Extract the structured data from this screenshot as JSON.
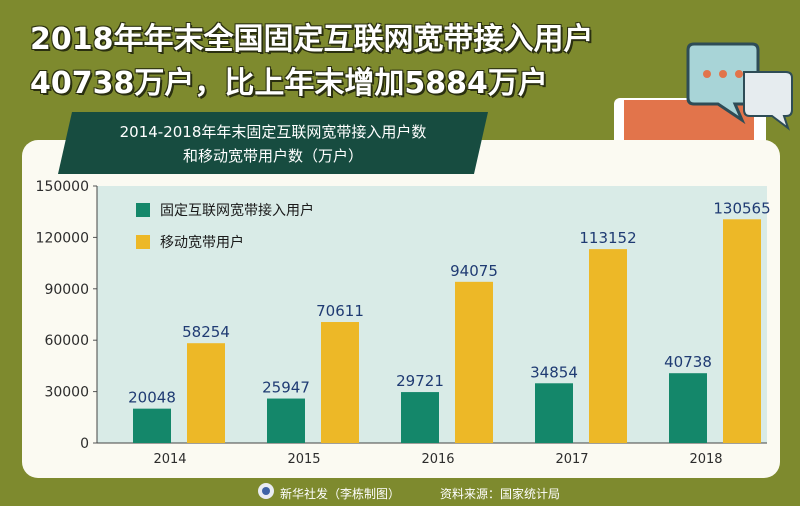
{
  "header": {
    "title_line1": "2018年年末全国固定互联网宽带接入用户",
    "title_line2": "40738万户，比上年末增加5884万户"
  },
  "chart_data": {
    "type": "bar",
    "title": "2014-2018年年末固定互联网宽带接入用户数\n和移动宽带用户数（万户）",
    "title_lines": [
      "2014-2018年年末固定互联网宽带接入用户数",
      "和移动宽带用户数（万户）"
    ],
    "categories": [
      "2014",
      "2015",
      "2016",
      "2017",
      "2018"
    ],
    "series": [
      {
        "name": "固定互联网宽带接入用户",
        "values": [
          20048,
          25947,
          29721,
          34854,
          40738
        ],
        "color": "#14876a"
      },
      {
        "name": "移动宽带用户",
        "values": [
          58254,
          70611,
          94075,
          113152,
          130565
        ],
        "color": "#edb827"
      }
    ],
    "y_ticks": [
      "0",
      "30000",
      "60000",
      "90000",
      "120000",
      "150000"
    ],
    "ylim": [
      0,
      150000
    ],
    "grid": false,
    "legend_position": "top-left",
    "plot_background": "#d9ebe7",
    "label_color": "#1f3b73"
  },
  "footer": {
    "credit": "新华社发（李栋制图）",
    "source": "资料来源：国家统计局"
  },
  "colors": {
    "page_background": "#7e8a2e",
    "banner": "#174c40",
    "card": "#fbfaf2"
  },
  "icons": {
    "logo": "xinhua-logo-icon",
    "decoration": "monitor-speech-bubble-icon"
  }
}
